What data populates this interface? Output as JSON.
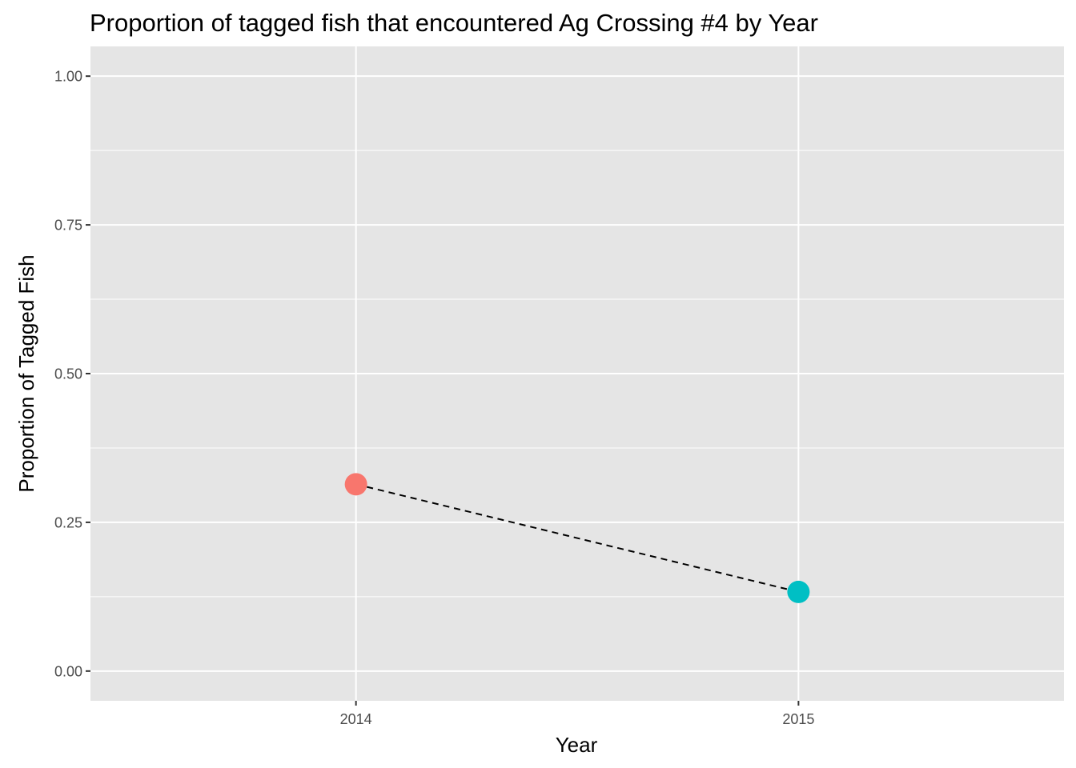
{
  "chart_data": {
    "type": "line",
    "title": "Proportion of tagged fish that encountered Ag Crossing #4 by Year",
    "xlabel": "Year",
    "ylabel": "Proportion of Tagged Fish",
    "categories": [
      "2014",
      "2015"
    ],
    "series": [
      {
        "values": [
          0.314,
          0.133
        ],
        "point_colors": [
          "#F8766D",
          "#00BFC4"
        ],
        "line_style": "dashed",
        "line_color": "#000000"
      }
    ],
    "ylim": [
      -0.05,
      1.05
    ],
    "yticks": [
      0.0,
      0.25,
      0.5,
      0.75,
      1.0
    ],
    "ytick_labels": [
      "0.00",
      "0.25",
      "0.50",
      "0.75",
      "1.00"
    ],
    "xlim": [
      0.4,
      2.6
    ],
    "grid": true,
    "legend": "none",
    "colors": {
      "panel_background": "#E5E5E5",
      "grid_line": "#FFFFFF",
      "tick_mark": "#333333"
    }
  }
}
